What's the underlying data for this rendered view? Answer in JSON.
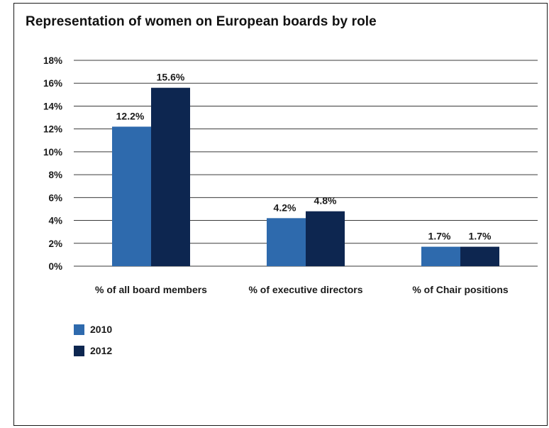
{
  "chart_data": {
    "type": "bar",
    "title": "Representation of women on European boards by role",
    "categories": [
      "% of all board members",
      "% of executive directors",
      "% of Chair positions"
    ],
    "series": [
      {
        "name": "2010",
        "values": [
          12.2,
          4.2,
          1.7
        ],
        "labels": [
          "12.2%",
          "4.2%",
          "1.7%"
        ],
        "color": "#2e6aad"
      },
      {
        "name": "2012",
        "values": [
          15.6,
          4.8,
          1.7
        ],
        "labels": [
          "15.6%",
          "4.8%",
          "1.7%"
        ],
        "color": "#0d2650"
      }
    ],
    "ylim": [
      0,
      18
    ],
    "yticks": [
      "0%",
      "2%",
      "4%",
      "6%",
      "8%",
      "10%",
      "12%",
      "14%",
      "16%",
      "18%"
    ],
    "grid": true,
    "legend_position": "bottom-left"
  }
}
